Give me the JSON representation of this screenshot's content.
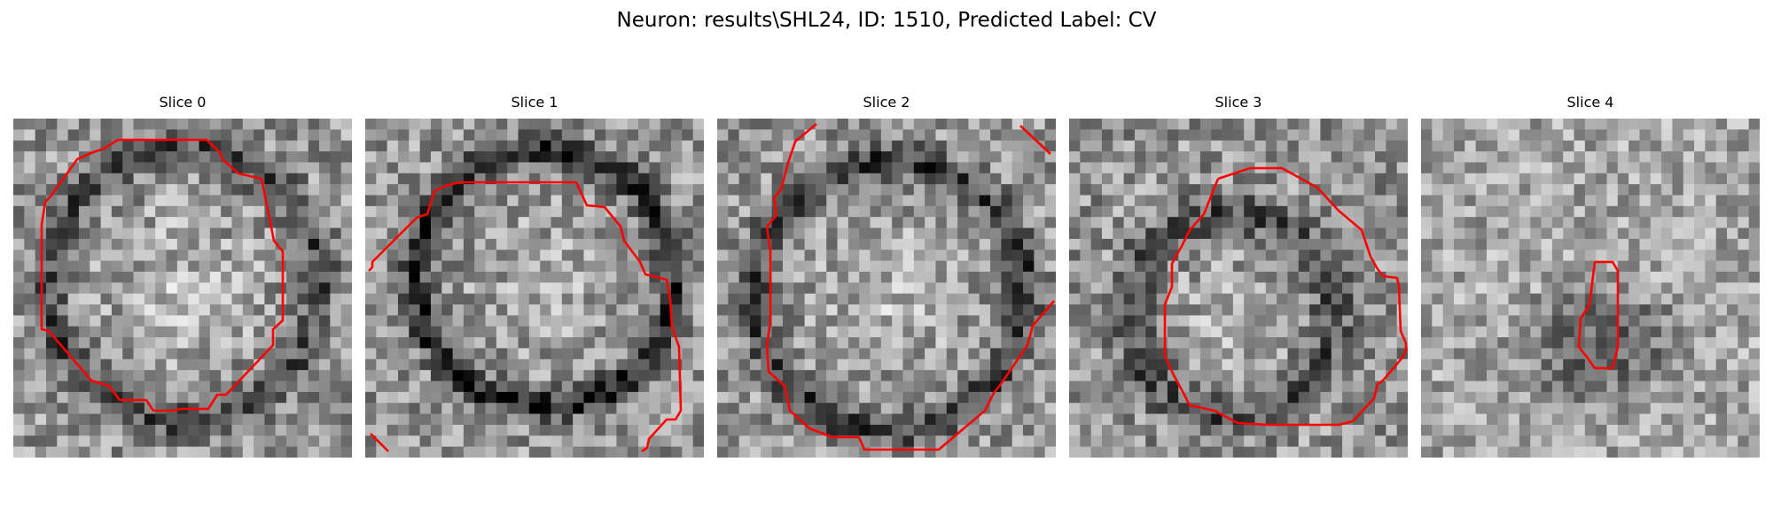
{
  "figure": {
    "title": "Neuron: results\\SHL24, ID: 1510, Predicted Label: CV"
  },
  "style": {
    "contour_color": "#ff0000",
    "background": "#ffffff",
    "colormap": "gray"
  },
  "panels": [
    {
      "title": "Slice 0"
    },
    {
      "title": "Slice 1"
    },
    {
      "title": "Slice 2"
    },
    {
      "title": "Slice 3"
    },
    {
      "title": "Slice 4"
    }
  ]
}
